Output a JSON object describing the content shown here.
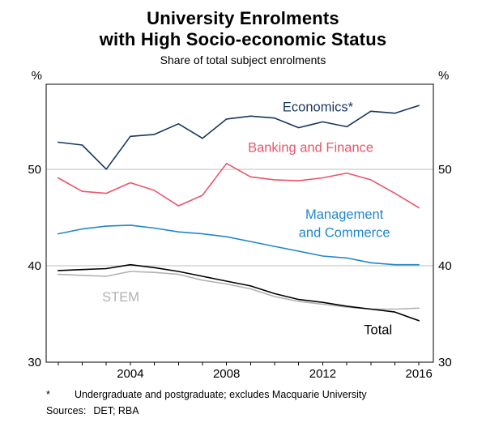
{
  "title": {
    "line1": "University Enrolments",
    "line2": "with High Socio-economic Status"
  },
  "subtitle": "Share of total subject enrolments",
  "footnote": {
    "marker": "*",
    "text": "Undergraduate and postgraduate; excludes Macquarie University"
  },
  "sources": {
    "label": "Sources:",
    "text": "DET; RBA"
  },
  "chart_data": {
    "type": "line",
    "title": "University Enrolments with High Socio-economic Status",
    "subtitle": "Share of total subject enrolments",
    "ylabel": "%",
    "unit_label": "%",
    "xlim": [
      2000.5,
      2016.6
    ],
    "ylim": [
      30,
      58.8
    ],
    "y_ticks": [
      30,
      40,
      50
    ],
    "x_ticks": [
      2004,
      2008,
      2012,
      2016
    ],
    "gridlines": [
      40,
      50
    ],
    "grid": "horizontal",
    "legend": "inline-annotations",
    "x": [
      2001,
      2002,
      2003,
      2004,
      2005,
      2006,
      2007,
      2008,
      2009,
      2010,
      2011,
      2012,
      2013,
      2014,
      2015,
      2016
    ],
    "series": [
      {
        "name": "Economics*",
        "color": "#17375E",
        "values": [
          52.8,
          52.5,
          50.0,
          53.4,
          53.6,
          54.7,
          53.2,
          55.2,
          55.5,
          55.3,
          54.3,
          54.9,
          54.4,
          56.0,
          55.8,
          56.6
        ]
      },
      {
        "name": "Banking and Finance",
        "color": "#E9556A",
        "values": [
          49.1,
          47.7,
          47.5,
          48.6,
          47.8,
          46.2,
          47.3,
          50.6,
          49.2,
          48.9,
          48.8,
          49.1,
          49.6,
          48.9,
          47.5,
          46.0
        ]
      },
      {
        "name": "Management and Commerce",
        "color": "#1F87C9",
        "values": [
          43.3,
          43.8,
          44.1,
          44.2,
          43.9,
          43.5,
          43.3,
          43.0,
          42.5,
          42.0,
          41.5,
          41.0,
          40.8,
          40.3,
          40.1,
          40.1
        ]
      },
      {
        "name": "STEM",
        "color": "#B1B1B1",
        "values": [
          39.1,
          39.0,
          38.9,
          39.4,
          39.3,
          39.1,
          38.5,
          38.1,
          37.6,
          36.8,
          36.3,
          36.0,
          35.7,
          35.5,
          35.5,
          35.6
        ]
      },
      {
        "name": "Total",
        "color": "#000000",
        "values": [
          39.5,
          39.6,
          39.7,
          40.1,
          39.8,
          39.4,
          38.9,
          38.4,
          37.9,
          37.1,
          36.5,
          36.2,
          35.8,
          35.5,
          35.2,
          34.3
        ]
      }
    ],
    "annotations": [
      {
        "text": "Economics*",
        "x": 2011.8,
        "y": 56.4,
        "color": "#17375E"
      },
      {
        "text": "Banking and Finance",
        "x": 2011.5,
        "y": 52.2,
        "color": "#E9556A"
      },
      {
        "text": "Management",
        "x": 2012.9,
        "y": 45.3,
        "color": "#1F87C9"
      },
      {
        "text": "and Commerce",
        "x": 2012.9,
        "y": 43.4,
        "color": "#1F87C9"
      },
      {
        "text": "STEM",
        "x": 2003.6,
        "y": 36.7,
        "color": "#B1B1B1"
      },
      {
        "text": "Total",
        "x": 2014.3,
        "y": 33.3,
        "color": "#000000"
      }
    ]
  }
}
